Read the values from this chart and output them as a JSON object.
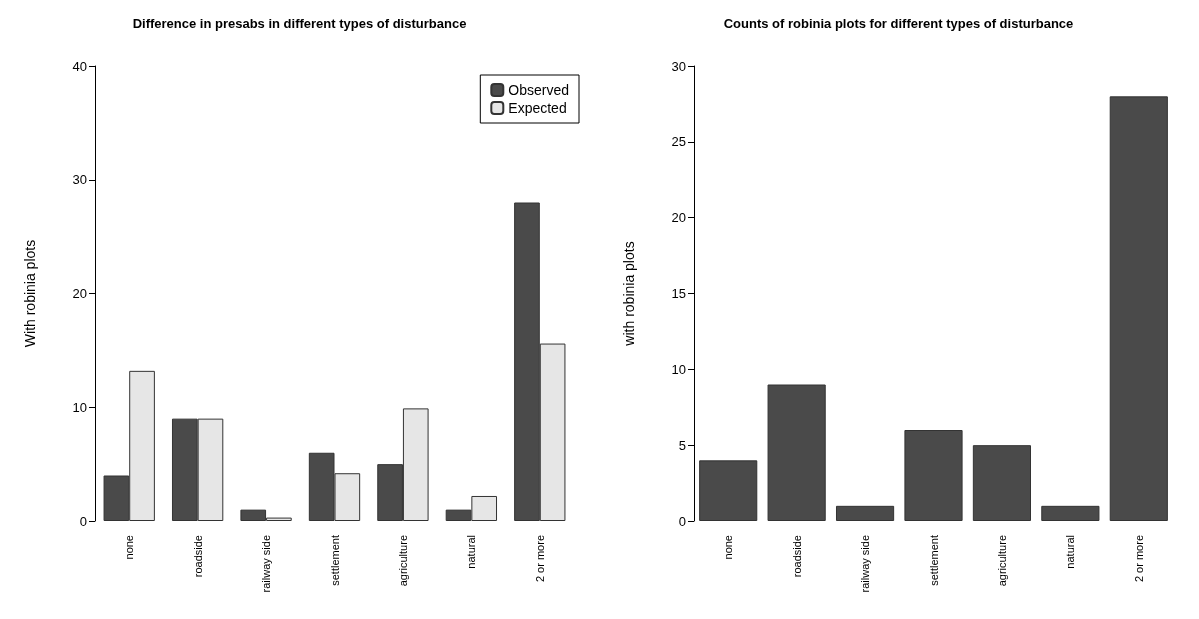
{
  "chart_data": [
    {
      "type": "bar",
      "title": "Difference in presabs in different types of disturbance",
      "ylabel": "With robinia plots",
      "categories": [
        "none",
        "roadside",
        "railway side",
        "settlement",
        "agriculture",
        "natural",
        "2 or more"
      ],
      "series": [
        {
          "name": "Observed",
          "color": "#4a4a4a",
          "values": [
            4,
            9,
            1,
            6,
            5,
            1,
            28
          ]
        },
        {
          "name": "Expected",
          "color": "#e6e6e6",
          "values": [
            13.2,
            9,
            0.3,
            4.2,
            9.9,
            2.2,
            15.6
          ]
        }
      ],
      "ylim": [
        0,
        40
      ],
      "yticks": [
        0,
        10,
        20,
        30,
        40
      ],
      "grid": false,
      "legend": "top right"
    },
    {
      "type": "bar",
      "title": "Counts of robinia plots for different types of disturbance",
      "ylabel": "with robinia plots",
      "categories": [
        "none",
        "roadside",
        "railway side",
        "settlement",
        "agriculture",
        "natural",
        "2 or more"
      ],
      "series": [
        {
          "color": "#4a4a4a",
          "values": [
            4,
            9,
            1,
            6,
            5,
            1,
            28
          ]
        }
      ],
      "ylim": [
        0,
        30
      ],
      "yticks": [
        0,
        5,
        10,
        15,
        20,
        25,
        30
      ],
      "grid": false
    }
  ]
}
